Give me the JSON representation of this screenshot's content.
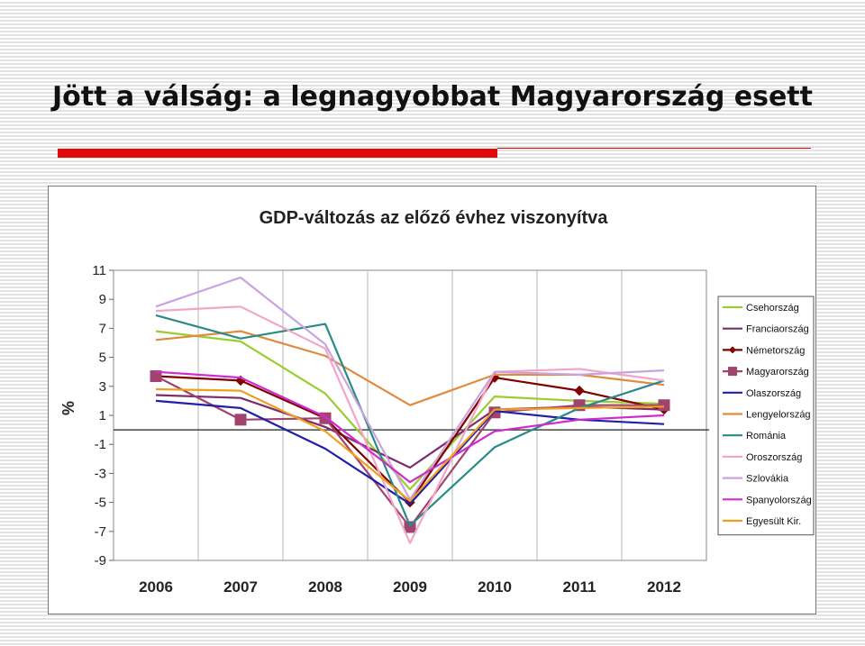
{
  "slide": {
    "title": "Jött a válság: a legnagyobbat Magyarország esett",
    "accent_color": "#e10b0b"
  },
  "chart_data": {
    "type": "line",
    "title": "GDP-változás az előző évhez viszonyítva",
    "xlabel": "",
    "ylabel": "%",
    "categories": [
      "2006",
      "2007",
      "2008",
      "2009",
      "2010",
      "2011",
      "2012"
    ],
    "ylim": [
      -9,
      11
    ],
    "yticks": [
      11,
      9,
      7,
      5,
      3,
      1,
      -1,
      -3,
      -5,
      -7,
      -9
    ],
    "grid": "vertical",
    "legend": "right",
    "series": [
      {
        "name": "Csehország",
        "color": "#9acd32",
        "marker": "none",
        "values": [
          6.8,
          6.1,
          2.5,
          -4.1,
          2.3,
          2.0,
          1.8
        ]
      },
      {
        "name": "Franciaország",
        "color": "#7b2d6e",
        "marker": "none",
        "values": [
          2.4,
          2.2,
          0.2,
          -2.6,
          1.4,
          1.6,
          1.4
        ]
      },
      {
        "name": "Németország",
        "color": "#800000",
        "marker": "diamond",
        "values": [
          3.7,
          3.4,
          0.8,
          -5.0,
          3.6,
          2.7,
          1.4
        ]
      },
      {
        "name": "Magyarország",
        "color": "#a0436e",
        "marker": "square",
        "values": [
          3.7,
          0.7,
          0.8,
          -6.7,
          1.2,
          1.7,
          1.7
        ]
      },
      {
        "name": "Olaszország",
        "color": "#1f1fa8",
        "marker": "none",
        "values": [
          2.0,
          1.5,
          -1.3,
          -5.1,
          1.3,
          0.7,
          0.4
        ]
      },
      {
        "name": "Lengyelország",
        "color": "#e08a3c",
        "marker": "none",
        "values": [
          6.2,
          6.8,
          5.1,
          1.7,
          3.8,
          3.8,
          3.1
        ]
      },
      {
        "name": "Románia",
        "color": "#2a8a86",
        "marker": "none",
        "values": [
          7.9,
          6.3,
          7.3,
          -6.6,
          -1.2,
          1.5,
          3.4
        ]
      },
      {
        "name": "Oroszország",
        "color": "#f2a6c8",
        "marker": "none",
        "values": [
          8.2,
          8.5,
          5.6,
          -7.8,
          4.0,
          4.2,
          3.4
        ]
      },
      {
        "name": "Szlovákia",
        "color": "#c9a3e0",
        "marker": "none",
        "values": [
          8.5,
          10.5,
          5.9,
          -4.8,
          4.0,
          3.8,
          4.1
        ]
      },
      {
        "name": "Spanyolország",
        "color": "#d02bd0",
        "marker": "none",
        "values": [
          4.0,
          3.6,
          0.9,
          -3.6,
          -0.1,
          0.7,
          1.0
        ]
      },
      {
        "name": "Egyesült Kir.",
        "color": "#f0a020",
        "marker": "none",
        "values": [
          2.8,
          2.7,
          -0.1,
          -4.9,
          1.4,
          1.5,
          1.6
        ]
      }
    ]
  }
}
